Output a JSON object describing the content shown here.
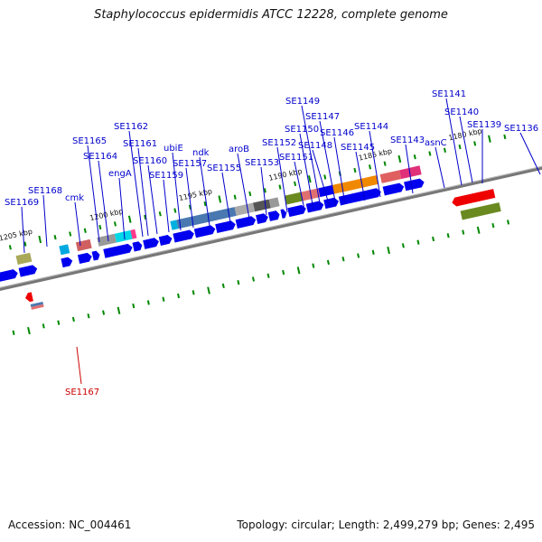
{
  "title": "Staphylococcus epidermidis ATCC 12228, complete genome",
  "footer": {
    "accession": "Accession: NC_004461",
    "topology": "Topology: circular; Length: 2,499,279 bp; Genes: 2,495"
  },
  "kbp_labels": [
    "1205 kbp",
    "1200 kbp",
    "1195 kbp",
    "1190 kbp",
    "1185 kbp",
    "1180 kbp"
  ],
  "gene_labels": [
    "SE1169",
    "SE1168",
    "cmk",
    "SE1165",
    "SE1164",
    "engA",
    "SE1162",
    "SE1161",
    "SE1160",
    "SE1159",
    "ubiE",
    "SE1157",
    "ndk",
    "SE1155",
    "aroB",
    "SE1153",
    "SE1152",
    "SE1151",
    "SE1150",
    "SE1149",
    "SE1148",
    "SE1147",
    "SE1146",
    "SE1145",
    "SE1144",
    "SE1143",
    "asnC",
    "SE1141",
    "SE1140",
    "SE1139",
    "SE1136",
    "SE1167"
  ],
  "colors": {
    "forward_gene": "#0000ee",
    "highlight_gene": "#ee0000",
    "label_blue": "#0000cc",
    "label_red": "#cc0000",
    "ticks": "#008800",
    "backbone": "#777777"
  }
}
